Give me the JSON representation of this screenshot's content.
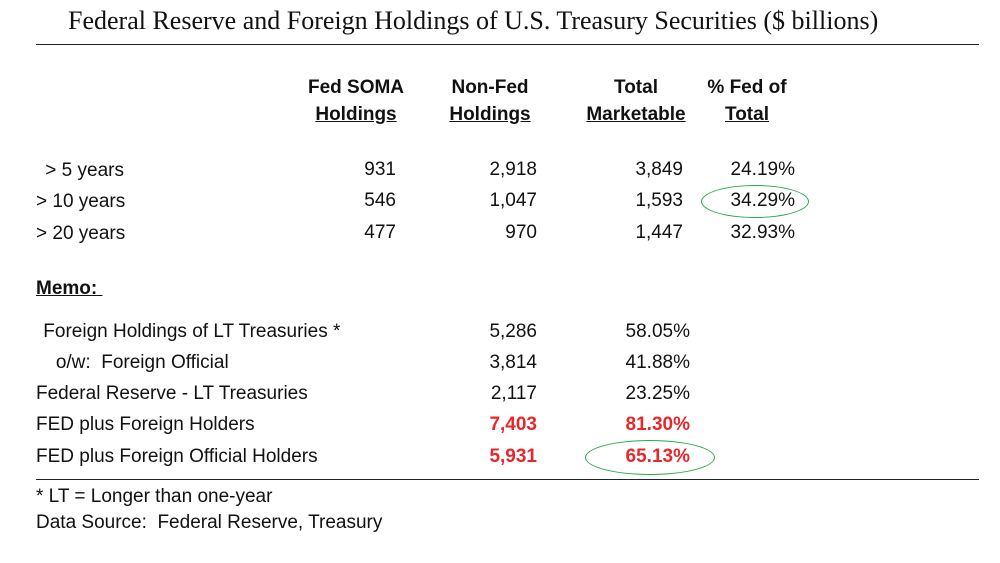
{
  "title": "Federal Reserve and Foreign Holdings of U.S. Treasury Securities ($ billions)",
  "columns": [
    {
      "line1": "Fed SOMA",
      "line2": "Holdings"
    },
    {
      "line1": "Non-Fed",
      "line2": "Holdings"
    },
    {
      "line1": "Total",
      "line2": "Marketable"
    },
    {
      "line1": "% Fed of",
      "line2": "Total"
    }
  ],
  "rows": [
    {
      "label": " > 5 years",
      "fed": "931",
      "nonfed": "2,918",
      "total": "3,849",
      "pct": "24.19%"
    },
    {
      "label": "> 10 years",
      "fed": "546",
      "nonfed": "1,047",
      "total": "1,593",
      "pct": "34.29%"
    },
    {
      "label": "> 20 years",
      "fed": "477",
      "nonfed": "970",
      "total": "1,447",
      "pct": "32.93%"
    }
  ],
  "memo_label": "Memo: ",
  "memo_rows": [
    {
      "label": " Foreign Holdings of LT Treasuries *",
      "value": "5,286",
      "pct": "58.05%"
    },
    {
      "label": "   o/w:  Foreign Official",
      "value": "3,814",
      "pct": "41.88%"
    },
    {
      "label": "Federal Reserve - LT Treasuries",
      "value": "2,117",
      "pct": "23.25%"
    },
    {
      "label": "FED plus Foreign Holders",
      "value": "7,403",
      "pct": "81.30%"
    },
    {
      "label": "FED plus Foreign Official Holders",
      "value": "5,931",
      "pct": "65.13%"
    }
  ],
  "footnote": "* LT = Longer than one-year",
  "source": "Data Source:  Federal Reserve, Treasury",
  "colors": {
    "highlight_red": "#e8262b",
    "circle_green": "#2aa84a"
  }
}
